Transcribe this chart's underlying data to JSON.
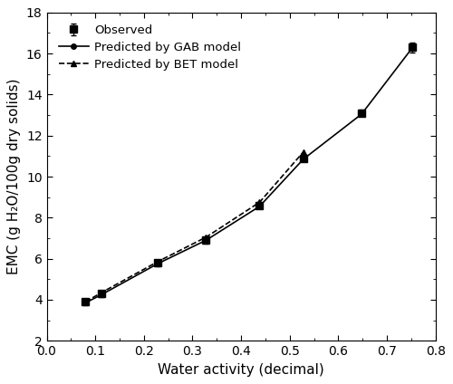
{
  "observed_x": [
    0.08,
    0.113,
    0.228,
    0.328,
    0.438,
    0.528,
    0.648,
    0.753
  ],
  "observed_y": [
    3.9,
    4.3,
    5.8,
    6.9,
    8.6,
    10.9,
    13.1,
    16.3
  ],
  "observed_yerr": [
    0.15,
    0.15,
    0.15,
    0.15,
    0.15,
    0.15,
    0.15,
    0.25
  ],
  "gab_x": [
    0.08,
    0.113,
    0.228,
    0.328,
    0.438,
    0.528,
    0.648,
    0.753
  ],
  "gab_y": [
    3.85,
    4.25,
    5.75,
    6.9,
    8.55,
    10.85,
    13.05,
    16.3
  ],
  "bet_x": [
    0.08,
    0.113,
    0.228,
    0.328,
    0.438,
    0.528
  ],
  "bet_y": [
    3.9,
    4.35,
    5.85,
    7.05,
    8.75,
    11.2
  ],
  "xlabel": "Water activity (decimal)",
  "ylabel": "EMC (g H₂O/100g dry solids)",
  "xlim": [
    0.0,
    0.8
  ],
  "ylim": [
    2,
    18
  ],
  "xticks": [
    0.0,
    0.1,
    0.2,
    0.3,
    0.4,
    0.5,
    0.6,
    0.7,
    0.8
  ],
  "yticks": [
    2,
    4,
    6,
    8,
    10,
    12,
    14,
    16,
    18
  ],
  "legend_observed": "Observed",
  "legend_gab": "Predicted by GAB model",
  "legend_bet": "Predicted by BET model",
  "line_color": "#000000",
  "background_color": "#ffffff",
  "font_size": 11
}
